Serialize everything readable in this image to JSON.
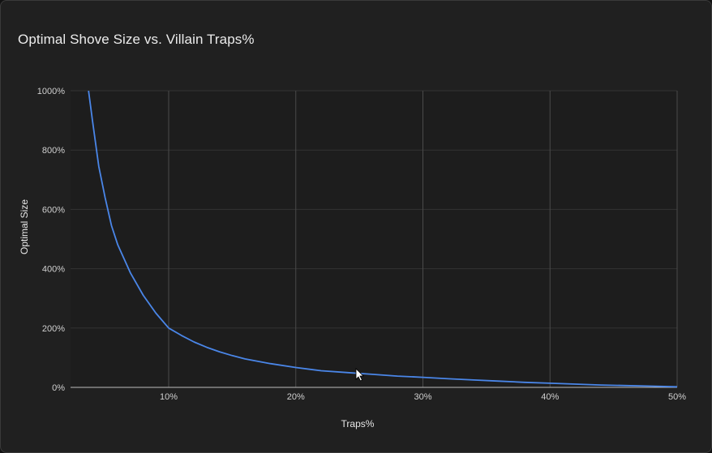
{
  "chart_data": {
    "type": "line",
    "title": "Optimal Shove Size vs. Villain Traps%",
    "xlabel": "Traps%",
    "ylabel": "Optimal Size",
    "xlim": [
      2,
      50
    ],
    "ylim": [
      0,
      1000
    ],
    "x_ticks": [
      10,
      20,
      30,
      40,
      50
    ],
    "x_tick_labels": [
      "10%",
      "20%",
      "30%",
      "40%",
      "50%"
    ],
    "y_ticks": [
      0,
      200,
      400,
      600,
      800,
      1000
    ],
    "y_tick_labels": [
      "0%",
      "200%",
      "400%",
      "600%",
      "800%",
      "1000%"
    ],
    "grid": true,
    "series": [
      {
        "color": "#4a86e8",
        "x": [
          3.7,
          4.0,
          4.5,
          5.0,
          5.5,
          6,
          7,
          8,
          9,
          10,
          11,
          12,
          13,
          14,
          15,
          16,
          18,
          20,
          22,
          24,
          26,
          28,
          30,
          32,
          34,
          36,
          38,
          40,
          42,
          44,
          46,
          48,
          50
        ],
        "y": [
          1000,
          900,
          745,
          640,
          545,
          480,
          385,
          310,
          250,
          200,
          175,
          153,
          135,
          120,
          107,
          96,
          80,
          67,
          56,
          50,
          44,
          38,
          34,
          29,
          25,
          21,
          17,
          14,
          11,
          8,
          6,
          4,
          2
        ]
      }
    ]
  }
}
